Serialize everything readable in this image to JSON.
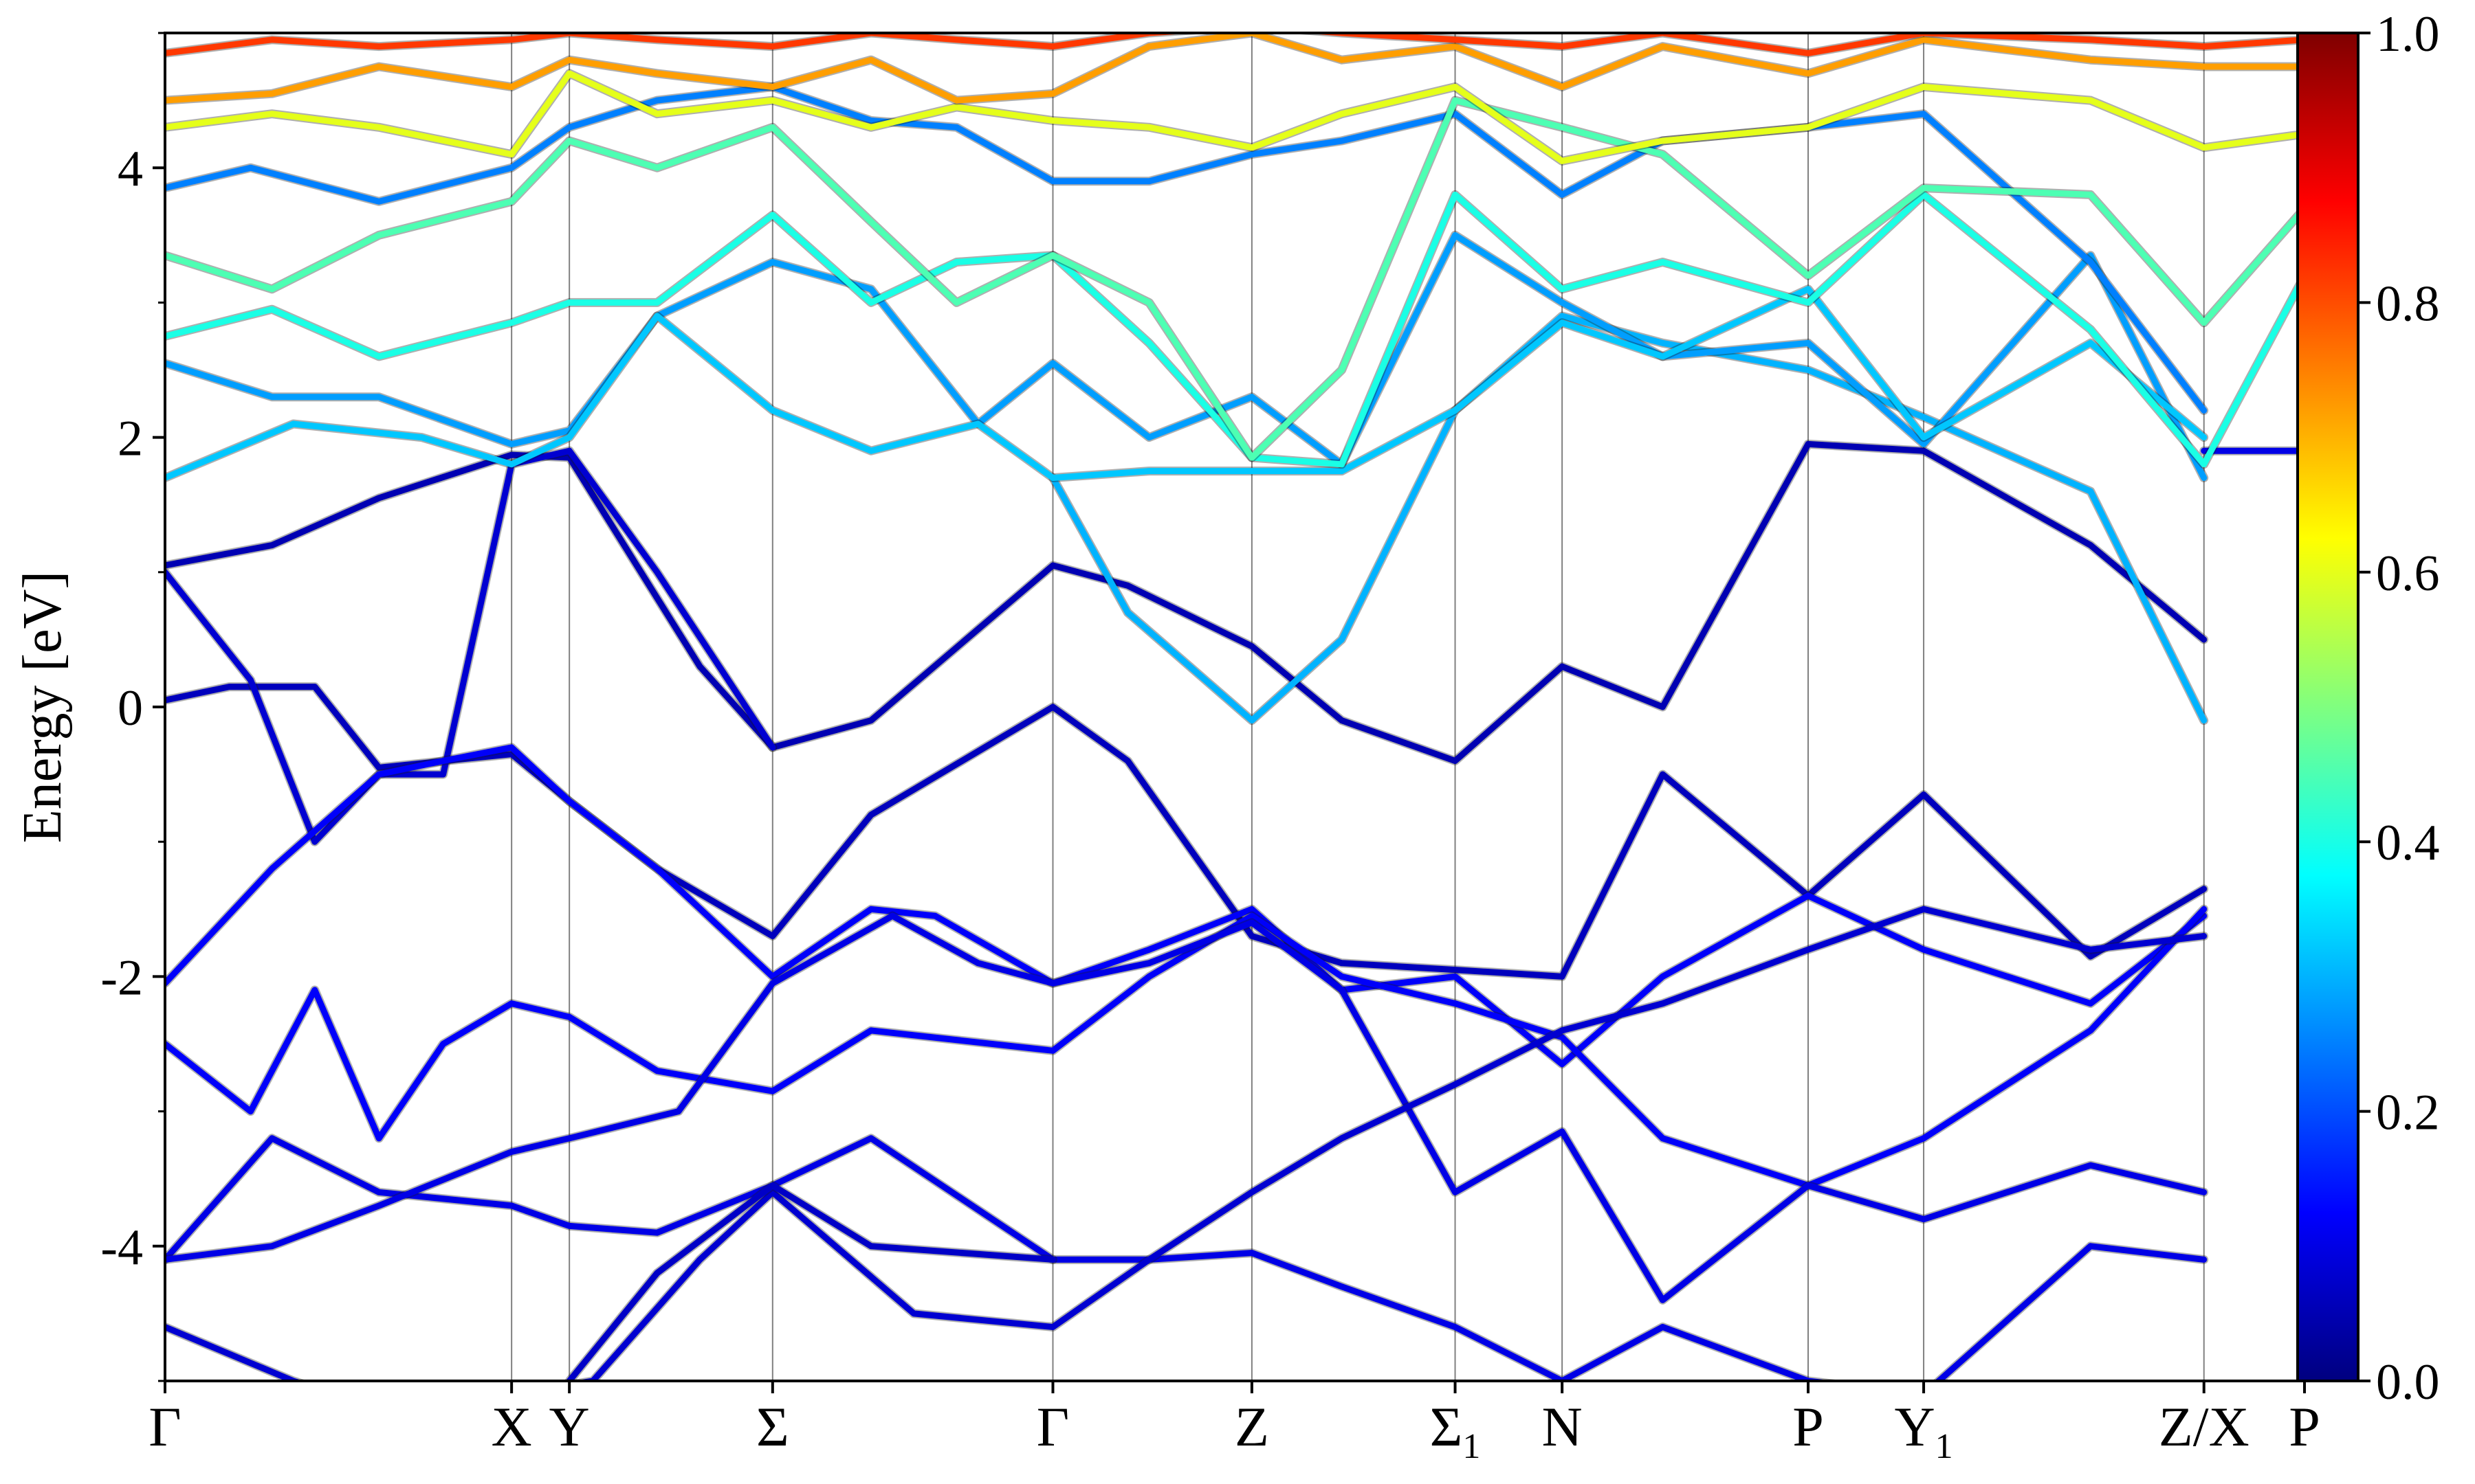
{
  "chart_data": {
    "type": "line",
    "title": "",
    "xlabel": "",
    "ylabel": "Energy [eV]",
    "ylim": [
      -5,
      5
    ],
    "y_ticks": [
      {
        "value": 4,
        "label": "4"
      },
      {
        "value": 2,
        "label": "2"
      },
      {
        "value": 0,
        "label": "0"
      },
      {
        "value": -2,
        "label": "-2"
      },
      {
        "value": -4,
        "label": "-4"
      }
    ],
    "y_minor_ticks": [
      5,
      3,
      1,
      -1,
      -3,
      -5
    ],
    "k_ticks": [
      {
        "label": "Γ",
        "sub": "",
        "position": 0.0
      },
      {
        "label": "X",
        "sub": "",
        "position": 0.162
      },
      {
        "label": "Y",
        "sub": "",
        "position": 0.189
      },
      {
        "label": "Σ",
        "sub": "",
        "position": 0.284
      },
      {
        "label": "Γ",
        "sub": "",
        "position": 0.415
      },
      {
        "label": "Z",
        "sub": "",
        "position": 0.508
      },
      {
        "label": "Σ",
        "sub": "1",
        "position": 0.603
      },
      {
        "label": "N",
        "sub": "",
        "position": 0.653
      },
      {
        "label": "P",
        "sub": "",
        "position": 0.768
      },
      {
        "label": "Y",
        "sub": "1",
        "position": 0.822
      },
      {
        "label": "Z/X",
        "sub": "",
        "position": 0.953
      },
      {
        "label": "P",
        "sub": "",
        "position": 1.0
      }
    ],
    "grid": "vertical lines at high-symmetry k-points",
    "colorbar": {
      "colormap": "jet",
      "range": [
        0.0,
        1.0
      ],
      "ticks": [
        {
          "value": 1.0,
          "label": "1.0"
        },
        {
          "value": 0.8,
          "label": "0.8"
        },
        {
          "value": 0.6,
          "label": "0.6"
        },
        {
          "value": 0.4,
          "label": "0.4"
        },
        {
          "value": 0.2,
          "label": "0.2"
        },
        {
          "value": 0.0,
          "label": "0.0"
        }
      ]
    },
    "series": [
      {
        "weight": 0.05,
        "x": [
          0.0,
          0.05,
          0.1,
          0.162,
          0.189,
          0.25,
          0.284,
          0.33,
          0.415,
          0.45,
          0.508,
          0.55,
          0.603,
          0.653,
          0.7,
          0.768,
          0.822,
          0.9,
          0.953
        ],
        "y": [
          1.05,
          1.2,
          1.55,
          1.87,
          1.85,
          0.3,
          -0.3,
          -0.1,
          1.05,
          0.9,
          0.45,
          -0.1,
          -0.4,
          0.3,
          0.0,
          1.95,
          1.9,
          1.2,
          0.5
        ]
      },
      {
        "weight": 0.1,
        "x": [
          0.953,
          1.0
        ],
        "y": [
          1.9,
          1.9
        ]
      },
      {
        "weight": 0.06,
        "x": [
          0.0,
          0.03,
          0.07,
          0.1,
          0.162,
          0.189,
          0.23,
          0.284,
          0.33,
          0.415,
          0.45,
          0.508,
          0.55,
          0.603,
          0.653,
          0.7,
          0.768,
          0.822,
          0.9,
          0.953
        ],
        "y": [
          0.05,
          0.15,
          0.15,
          -0.45,
          -0.35,
          -0.7,
          -1.2,
          -1.7,
          -0.8,
          0.0,
          -0.4,
          -1.7,
          -1.9,
          -1.95,
          -2.0,
          -0.5,
          -1.4,
          -0.65,
          -1.85,
          -1.35
        ]
      },
      {
        "weight": 0.08,
        "x": [
          0.0,
          0.04,
          0.07,
          0.1,
          0.13,
          0.162,
          0.189,
          0.23,
          0.284
        ],
        "y": [
          1.0,
          0.2,
          -1.0,
          -0.5,
          -0.5,
          1.8,
          1.9,
          1.0,
          -0.3
        ]
      },
      {
        "weight": 0.12,
        "x": [
          0.0,
          0.05,
          0.1,
          0.13,
          0.162,
          0.189,
          0.23,
          0.284,
          0.33,
          0.36,
          0.415,
          0.46,
          0.508,
          0.55,
          0.603,
          0.653,
          0.7,
          0.768,
          0.822,
          0.9,
          0.953
        ],
        "y": [
          -2.05,
          -1.2,
          -0.5,
          -0.4,
          -0.3,
          -0.7,
          -1.2,
          -2.0,
          -1.5,
          -1.55,
          -2.05,
          -1.8,
          -1.5,
          -2.1,
          -2.0,
          -2.65,
          -2.0,
          -1.4,
          -1.8,
          -2.2,
          -1.55
        ]
      },
      {
        "weight": 0.12,
        "x": [
          0.0,
          0.04,
          0.07,
          0.1,
          0.13,
          0.162,
          0.189,
          0.23,
          0.284,
          0.33,
          0.415,
          0.46,
          0.508,
          0.55,
          0.603,
          0.653,
          0.7,
          0.768,
          0.822,
          0.9,
          0.953
        ],
        "y": [
          -2.5,
          -3.0,
          -2.1,
          -3.2,
          -2.5,
          -2.2,
          -2.3,
          -2.7,
          -2.85,
          -2.4,
          -2.55,
          -2.0,
          -1.55,
          -2.0,
          -2.2,
          -2.45,
          -3.2,
          -3.55,
          -3.2,
          -2.4,
          -1.5
        ]
      },
      {
        "weight": 0.1,
        "x": [
          0.0,
          0.05,
          0.1,
          0.162,
          0.189,
          0.23,
          0.284,
          0.33,
          0.415,
          0.46,
          0.508,
          0.55,
          0.603,
          0.653,
          0.7,
          0.768,
          0.822,
          0.9,
          0.953
        ],
        "y": [
          -4.1,
          -3.2,
          -3.6,
          -3.7,
          -3.85,
          -3.9,
          -3.55,
          -3.2,
          -4.1,
          -4.1,
          -4.05,
          -4.3,
          -4.6,
          -5.0,
          -4.6,
          -5.0,
          -5.1,
          -4.0,
          -4.1
        ]
      },
      {
        "weight": 0.1,
        "x": [
          0.0,
          0.05,
          0.1,
          0.162,
          0.189,
          0.24,
          0.284,
          0.34,
          0.38,
          0.415,
          0.46,
          0.508,
          0.55,
          0.603,
          0.653,
          0.7,
          0.768,
          0.822,
          0.9,
          0.953
        ],
        "y": [
          -4.1,
          -4.0,
          -3.7,
          -3.3,
          -3.2,
          -3.0,
          -2.05,
          -1.55,
          -1.9,
          -2.05,
          -1.9,
          -1.6,
          -2.1,
          -3.6,
          -3.15,
          -4.4,
          -3.55,
          -3.8,
          -3.4,
          -3.6
        ]
      },
      {
        "weight": 0.08,
        "x": [
          0.0,
          0.06,
          0.12,
          0.162,
          0.2,
          0.25,
          0.284,
          0.35,
          0.415,
          0.46,
          0.508,
          0.55,
          0.603,
          0.653,
          0.7,
          0.768,
          0.822,
          0.9,
          0.953
        ],
        "y": [
          -4.6,
          -5.0,
          -5.3,
          -5.1,
          -5.0,
          -4.1,
          -3.6,
          -4.5,
          -4.6,
          -4.1,
          -3.6,
          -3.2,
          -2.8,
          -2.4,
          -2.2,
          -1.8,
          -1.5,
          -1.8,
          -1.7
        ]
      },
      {
        "weight": 0.07,
        "x": [
          0.189,
          0.23,
          0.284,
          0.33,
          0.415
        ],
        "y": [
          -5.0,
          -4.2,
          -3.55,
          -4.0,
          -4.1
        ]
      },
      {
        "weight": 0.3,
        "x": [
          0.415,
          0.45,
          0.508,
          0.55,
          0.603,
          0.653,
          0.7,
          0.768,
          0.822,
          0.9,
          0.953
        ],
        "y": [
          1.7,
          0.7,
          -0.1,
          0.5,
          2.2,
          2.9,
          2.7,
          2.5,
          2.15,
          1.6,
          -0.1
        ]
      },
      {
        "weight": 0.28,
        "x": [
          0.0,
          0.05,
          0.1,
          0.162,
          0.189,
          0.23,
          0.284,
          0.33,
          0.38,
          0.415,
          0.46,
          0.508,
          0.55,
          0.603,
          0.653,
          0.7,
          0.768,
          0.822,
          0.9,
          0.953
        ],
        "y": [
          2.55,
          2.3,
          2.3,
          1.95,
          2.05,
          2.9,
          3.3,
          3.1,
          2.1,
          2.55,
          2.0,
          2.3,
          1.8,
          3.5,
          3.0,
          2.6,
          2.7,
          1.95,
          3.35,
          1.7
        ]
      },
      {
        "weight": 0.32,
        "x": [
          0.0,
          0.06,
          0.12,
          0.162,
          0.189,
          0.23,
          0.284,
          0.33,
          0.38,
          0.415,
          0.46,
          0.508,
          0.55,
          0.603,
          0.653,
          0.7,
          0.768,
          0.822,
          0.9,
          0.953
        ],
        "y": [
          1.7,
          2.1,
          2.0,
          1.8,
          2.0,
          2.9,
          2.2,
          1.9,
          2.1,
          1.7,
          1.75,
          1.75,
          1.75,
          2.2,
          2.85,
          2.6,
          3.1,
          2.0,
          2.7,
          2.0
        ]
      },
      {
        "weight": 0.25,
        "x": [
          0.0,
          0.04,
          0.1,
          0.162,
          0.189,
          0.23,
          0.284,
          0.33,
          0.37,
          0.415,
          0.46,
          0.508,
          0.55,
          0.603,
          0.653,
          0.7,
          0.768,
          0.822,
          0.9,
          0.953
        ],
        "y": [
          3.85,
          4.0,
          3.75,
          4.0,
          4.3,
          4.5,
          4.6,
          4.35,
          4.3,
          3.9,
          3.9,
          4.1,
          4.2,
          4.4,
          3.8,
          4.2,
          4.3,
          4.4,
          3.3,
          2.2
        ]
      },
      {
        "weight": 0.4,
        "x": [
          0.0,
          0.05,
          0.1,
          0.162,
          0.189,
          0.23,
          0.284,
          0.33,
          0.37,
          0.415,
          0.46,
          0.508,
          0.55,
          0.603,
          0.653,
          0.7,
          0.768,
          0.822,
          0.9,
          0.953,
          1.0
        ],
        "y": [
          2.75,
          2.95,
          2.6,
          2.85,
          3.0,
          3.0,
          3.65,
          3.0,
          3.3,
          3.35,
          2.7,
          1.85,
          1.8,
          3.8,
          3.1,
          3.3,
          3.0,
          3.8,
          2.8,
          1.8,
          3.2
        ]
      },
      {
        "weight": 0.45,
        "x": [
          0.0,
          0.05,
          0.1,
          0.162,
          0.189,
          0.23,
          0.284,
          0.33,
          0.37,
          0.415,
          0.46,
          0.508,
          0.55,
          0.603,
          0.653,
          0.7,
          0.768,
          0.822,
          0.9,
          0.953,
          1.0
        ],
        "y": [
          3.35,
          3.1,
          3.5,
          3.75,
          4.2,
          4.0,
          4.3,
          3.6,
          3.0,
          3.35,
          3.0,
          1.85,
          2.5,
          4.5,
          4.3,
          4.1,
          3.2,
          3.85,
          3.8,
          2.85,
          3.7
        ]
      },
      {
        "weight": 0.6,
        "x": [
          0.0,
          0.05,
          0.1,
          0.162,
          0.189,
          0.23,
          0.284,
          0.33,
          0.37,
          0.415,
          0.46,
          0.508,
          0.55,
          0.603,
          0.653,
          0.7,
          0.768,
          0.822,
          0.9,
          0.953,
          1.0
        ],
        "y": [
          4.3,
          4.4,
          4.3,
          4.1,
          4.7,
          4.4,
          4.5,
          4.3,
          4.45,
          4.35,
          4.3,
          4.15,
          4.4,
          4.6,
          4.05,
          4.2,
          4.3,
          4.6,
          4.5,
          4.15,
          4.25
        ]
      },
      {
        "weight": 0.72,
        "x": [
          0.0,
          0.05,
          0.1,
          0.162,
          0.189,
          0.23,
          0.284,
          0.33,
          0.37,
          0.415,
          0.46,
          0.508,
          0.55,
          0.603,
          0.653,
          0.7,
          0.768,
          0.822,
          0.9,
          0.953,
          1.0
        ],
        "y": [
          4.5,
          4.55,
          4.75,
          4.6,
          4.8,
          4.7,
          4.6,
          4.8,
          4.5,
          4.55,
          4.9,
          5.0,
          4.8,
          4.9,
          4.6,
          4.9,
          4.7,
          4.95,
          4.8,
          4.75,
          4.75
        ]
      },
      {
        "weight": 0.82,
        "x": [
          0.0,
          0.05,
          0.1,
          0.162,
          0.189,
          0.23,
          0.284,
          0.33,
          0.37,
          0.415,
          0.46,
          0.508,
          0.55,
          0.603,
          0.653,
          0.7,
          0.768,
          0.822,
          0.9,
          0.953,
          1.0
        ],
        "y": [
          4.85,
          4.95,
          4.9,
          4.95,
          5.0,
          4.95,
          4.9,
          5.0,
          4.95,
          4.9,
          5.0,
          5.05,
          5.0,
          4.95,
          4.9,
          5.0,
          4.85,
          5.0,
          4.95,
          4.9,
          4.95
        ]
      }
    ]
  }
}
